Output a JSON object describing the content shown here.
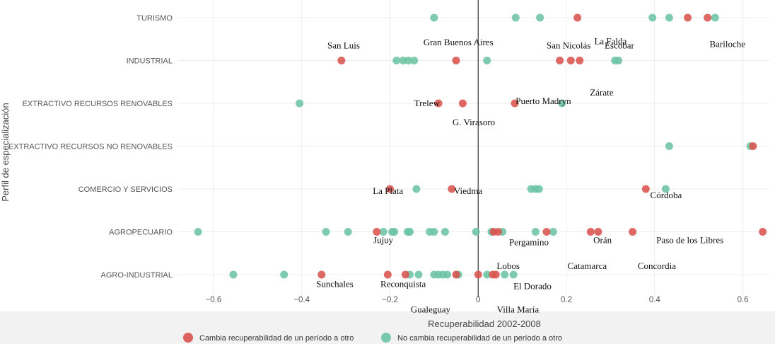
{
  "chart_data": {
    "type": "scatter",
    "title": "",
    "xlabel": "Recuperabilidad 2002-2008",
    "ylabel": "Perfil de especialización",
    "xlim": [
      -0.68,
      0.66
    ],
    "xticks": [
      -0.6,
      -0.4,
      -0.2,
      0,
      0.2,
      0.4,
      0.6
    ],
    "xtick_labels": [
      "−0.6",
      "−0.4",
      "−0.2",
      "0",
      "0.2",
      "0.4",
      "0.6"
    ],
    "categories": [
      "TURISMO",
      "INDUSTRIAL",
      "EXTRACTIVO RECURSOS RENOVABLES",
      "EXTRACTIVO RECURSOS NO RENOVABLES",
      "COMERCIO Y SERVICIOS",
      "AGROPECUARIO",
      "AGRO-INDUSTRIAL"
    ],
    "grid": true,
    "legend_position": "bottom-left",
    "colors": {
      "cambia": "#d9534f",
      "no_cambia": "#6cc4a4",
      "zero_line": "#333333",
      "grid": "#ececec"
    },
    "series": [
      {
        "name": "Cambia recuperabilidad de un período a otro",
        "color_key": "cambia",
        "points": [
          {
            "x": 0.225,
            "y": "TURISMO"
          },
          {
            "x": 0.475,
            "y": "TURISMO"
          },
          {
            "x": 0.52,
            "y": "TURISMO"
          },
          {
            "x": -0.31,
            "y": "INDUSTRIAL"
          },
          {
            "x": -0.05,
            "y": "INDUSTRIAL"
          },
          {
            "x": 0.185,
            "y": "INDUSTRIAL"
          },
          {
            "x": 0.21,
            "y": "INDUSTRIAL"
          },
          {
            "x": 0.23,
            "y": "INDUSTRIAL"
          },
          {
            "x": -0.09,
            "y": "EXTRACTIVO RECURSOS RENOVABLES"
          },
          {
            "x": -0.035,
            "y": "EXTRACTIVO RECURSOS RENOVABLES"
          },
          {
            "x": 0.083,
            "y": "EXTRACTIVO RECURSOS RENOVABLES"
          },
          {
            "x": 0.623,
            "y": "EXTRACTIVO RECURSOS NO RENOVABLES"
          },
          {
            "x": -0.2,
            "y": "COMERCIO Y SERVICIOS"
          },
          {
            "x": -0.06,
            "y": "COMERCIO Y SERVICIOS"
          },
          {
            "x": 0.38,
            "y": "COMERCIO Y SERVICIOS"
          },
          {
            "x": -0.23,
            "y": "AGROPECUARIO"
          },
          {
            "x": 0.035,
            "y": "AGROPECUARIO"
          },
          {
            "x": 0.045,
            "y": "AGROPECUARIO"
          },
          {
            "x": 0.155,
            "y": "AGROPECUARIO"
          },
          {
            "x": 0.255,
            "y": "AGROPECUARIO"
          },
          {
            "x": 0.272,
            "y": "AGROPECUARIO"
          },
          {
            "x": 0.35,
            "y": "AGROPECUARIO"
          },
          {
            "x": 0.645,
            "y": "AGROPECUARIO"
          },
          {
            "x": -0.355,
            "y": "AGRO-INDUSTRIAL"
          },
          {
            "x": -0.205,
            "y": "AGRO-INDUSTRIAL"
          },
          {
            "x": -0.165,
            "y": "AGRO-INDUSTRIAL"
          },
          {
            "x": -0.05,
            "y": "AGRO-INDUSTRIAL"
          },
          {
            "x": 0.0,
            "y": "AGRO-INDUSTRIAL"
          },
          {
            "x": 0.033,
            "y": "AGRO-INDUSTRIAL"
          },
          {
            "x": 0.04,
            "y": "AGRO-INDUSTRIAL"
          }
        ]
      },
      {
        "name": "No cambia recuperabilidad de un período a otro",
        "color_key": "no_cambia",
        "points": [
          {
            "x": -0.1,
            "y": "TURISMO"
          },
          {
            "x": 0.085,
            "y": "TURISMO"
          },
          {
            "x": 0.14,
            "y": "TURISMO"
          },
          {
            "x": 0.395,
            "y": "TURISMO"
          },
          {
            "x": 0.433,
            "y": "TURISMO"
          },
          {
            "x": 0.537,
            "y": "TURISMO"
          },
          {
            "x": -0.185,
            "y": "INDUSTRIAL"
          },
          {
            "x": -0.17,
            "y": "INDUSTRIAL"
          },
          {
            "x": -0.158,
            "y": "INDUSTRIAL"
          },
          {
            "x": -0.145,
            "y": "INDUSTRIAL"
          },
          {
            "x": 0.02,
            "y": "INDUSTRIAL"
          },
          {
            "x": 0.31,
            "y": "INDUSTRIAL"
          },
          {
            "x": 0.318,
            "y": "INDUSTRIAL"
          },
          {
            "x": -0.405,
            "y": "EXTRACTIVO RECURSOS RENOVABLES"
          },
          {
            "x": 0.19,
            "y": "EXTRACTIVO RECURSOS RENOVABLES"
          },
          {
            "x": 0.433,
            "y": "EXTRACTIVO RECURSOS NO RENOVABLES"
          },
          {
            "x": 0.617,
            "y": "EXTRACTIVO RECURSOS NO RENOVABLES"
          },
          {
            "x": -0.14,
            "y": "COMERCIO Y SERVICIOS"
          },
          {
            "x": 0.12,
            "y": "COMERCIO Y SERVICIOS"
          },
          {
            "x": 0.13,
            "y": "COMERCIO Y SERVICIOS"
          },
          {
            "x": 0.138,
            "y": "COMERCIO Y SERVICIOS"
          },
          {
            "x": 0.425,
            "y": "COMERCIO Y SERVICIOS"
          },
          {
            "x": -0.635,
            "y": "AGROPECUARIO"
          },
          {
            "x": -0.345,
            "y": "AGROPECUARIO"
          },
          {
            "x": -0.295,
            "y": "AGROPECUARIO"
          },
          {
            "x": -0.215,
            "y": "AGROPECUARIO"
          },
          {
            "x": -0.195,
            "y": "AGROPECUARIO"
          },
          {
            "x": -0.19,
            "y": "AGROPECUARIO"
          },
          {
            "x": -0.16,
            "y": "AGROPECUARIO"
          },
          {
            "x": -0.155,
            "y": "AGROPECUARIO"
          },
          {
            "x": -0.11,
            "y": "AGROPECUARIO"
          },
          {
            "x": -0.1,
            "y": "AGROPECUARIO"
          },
          {
            "x": -0.075,
            "y": "AGROPECUARIO"
          },
          {
            "x": -0.005,
            "y": "AGROPECUARIO"
          },
          {
            "x": 0.03,
            "y": "AGROPECUARIO"
          },
          {
            "x": 0.055,
            "y": "AGROPECUARIO"
          },
          {
            "x": 0.13,
            "y": "AGROPECUARIO"
          },
          {
            "x": 0.17,
            "y": "AGROPECUARIO"
          },
          {
            "x": -0.555,
            "y": "AGRO-INDUSTRIAL"
          },
          {
            "x": -0.44,
            "y": "AGRO-INDUSTRIAL"
          },
          {
            "x": -0.155,
            "y": "AGRO-INDUSTRIAL"
          },
          {
            "x": -0.135,
            "y": "AGRO-INDUSTRIAL"
          },
          {
            "x": -0.1,
            "y": "AGRO-INDUSTRIAL"
          },
          {
            "x": -0.09,
            "y": "AGRO-INDUSTRIAL"
          },
          {
            "x": -0.08,
            "y": "AGRO-INDUSTRIAL"
          },
          {
            "x": -0.07,
            "y": "AGRO-INDUSTRIAL"
          },
          {
            "x": -0.045,
            "y": "AGRO-INDUSTRIAL"
          },
          {
            "x": 0.02,
            "y": "AGRO-INDUSTRIAL"
          },
          {
            "x": 0.06,
            "y": "AGRO-INDUSTRIAL"
          },
          {
            "x": 0.08,
            "y": "AGRO-INDUSTRIAL"
          }
        ]
      }
    ],
    "annotations": [
      {
        "text": "La Falda",
        "x": 0.3,
        "y": "TURISMO",
        "offset": 0.55,
        "anchor": "middle"
      },
      {
        "text": "Bariloche",
        "x": 0.565,
        "y": "TURISMO",
        "offset": 0.62,
        "anchor": "middle"
      },
      {
        "text": "San Luis",
        "x": -0.305,
        "y": "INDUSTRIAL",
        "offset": -0.35,
        "anchor": "middle"
      },
      {
        "text": "Gran Buenos Aires",
        "x": -0.045,
        "y": "INDUSTRIAL",
        "offset": -0.42,
        "anchor": "middle"
      },
      {
        "text": "San Nicolás",
        "x": 0.205,
        "y": "INDUSTRIAL",
        "offset": -0.35,
        "anchor": "middle"
      },
      {
        "text": "Escobar",
        "x": 0.32,
        "y": "INDUSTRIAL",
        "offset": -0.35,
        "anchor": "middle"
      },
      {
        "text": "Zárate",
        "x": 0.28,
        "y": "INDUSTRIAL",
        "offset": 0.75,
        "anchor": "middle"
      },
      {
        "text": "Trelew",
        "x": -0.087,
        "y": "EXTRACTIVO RECURSOS RENOVABLES",
        "offset": 0.0,
        "anchor": "end"
      },
      {
        "text": "Puerto Madryn",
        "x": 0.085,
        "y": "EXTRACTIVO RECURSOS RENOVABLES",
        "offset": -0.05,
        "anchor": "start"
      },
      {
        "text": "G. Virasoro",
        "x": -0.01,
        "y": "EXTRACTIVO RECURSOS RENOVABLES",
        "offset": 0.45,
        "anchor": "middle"
      },
      {
        "text": "La Plata",
        "x": -0.17,
        "y": "COMERCIO Y SERVICIOS",
        "offset": 0.05,
        "anchor": "end"
      },
      {
        "text": "Viedma",
        "x": -0.055,
        "y": "COMERCIO Y SERVICIOS",
        "offset": 0.05,
        "anchor": "start"
      },
      {
        "text": "Córdoba",
        "x": 0.39,
        "y": "COMERCIO Y SERVICIOS",
        "offset": 0.15,
        "anchor": "start"
      },
      {
        "text": "Jujuy",
        "x": -0.215,
        "y": "AGROPECUARIO",
        "offset": 0.2,
        "anchor": "middle"
      },
      {
        "text": "Pergamino",
        "x": 0.115,
        "y": "AGROPECUARIO",
        "offset": 0.25,
        "anchor": "middle"
      },
      {
        "text": "Orán",
        "x": 0.282,
        "y": "AGROPECUARIO",
        "offset": 0.2,
        "anchor": "middle"
      },
      {
        "text": "Paso de los Libres",
        "x": 0.48,
        "y": "AGROPECUARIO",
        "offset": 0.2,
        "anchor": "middle"
      },
      {
        "text": "Catamarca",
        "x": 0.247,
        "y": "AGRO-INDUSTRIAL",
        "offset": -0.2,
        "anchor": "middle"
      },
      {
        "text": "Concordia",
        "x": 0.405,
        "y": "AGRO-INDUSTRIAL",
        "offset": -0.2,
        "anchor": "middle"
      },
      {
        "text": "Lobos",
        "x": 0.068,
        "y": "AGRO-INDUSTRIAL",
        "offset": -0.2,
        "anchor": "middle"
      },
      {
        "text": "Sunchales",
        "x": -0.325,
        "y": "AGRO-INDUSTRIAL",
        "offset": 0.22,
        "anchor": "middle"
      },
      {
        "text": "Reconquista",
        "x": -0.17,
        "y": "AGRO-INDUSTRIAL",
        "offset": 0.22,
        "anchor": "middle"
      },
      {
        "text": "El Dorado",
        "x": 0.123,
        "y": "AGRO-INDUSTRIAL",
        "offset": 0.27,
        "anchor": "middle"
      },
      {
        "text": "Gualeguay",
        "x": -0.108,
        "y": "AGRO-INDUSTRIAL",
        "offset": 0.82,
        "anchor": "middle"
      },
      {
        "text": "Villa María",
        "x": 0.09,
        "y": "AGRO-INDUSTRIAL",
        "offset": 0.82,
        "anchor": "middle"
      }
    ]
  }
}
